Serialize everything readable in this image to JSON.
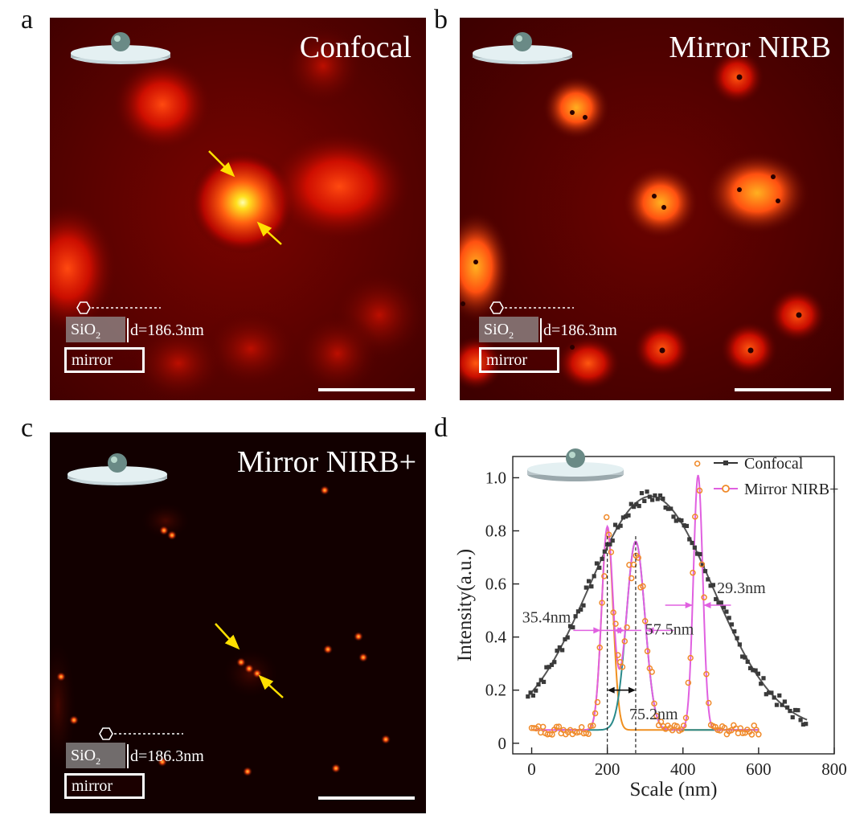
{
  "panels": [
    {
      "letter": "a",
      "title": "Confocal",
      "sio2": "SiO",
      "sio2_sub": "2",
      "thickness": "d=186.3nm",
      "mirror": "mirror"
    },
    {
      "letter": "b",
      "title": "Mirror NIRB",
      "sio2": "SiO",
      "sio2_sub": "2",
      "thickness": "d=186.3nm",
      "mirror": "mirror"
    },
    {
      "letter": "c",
      "title": "Mirror NIRB+",
      "sio2": "SiO",
      "sio2_sub": "2",
      "thickness": "d=186.3nm",
      "mirror": "mirror"
    }
  ],
  "chart_data": {
    "letter": "d",
    "type": "scatter",
    "xlabel": "Scale (nm)",
    "ylabel": "Intensity(a.u.)",
    "xlim": [
      -50,
      800
    ],
    "ylim": [
      -0.04,
      1.08
    ],
    "xticks": [
      "0",
      "200",
      "400",
      "600",
      "800"
    ],
    "yticks": [
      "0",
      "0.2",
      "0.4",
      "0.6",
      "0.8",
      "1.0"
    ],
    "legend": [
      "Confocal",
      "Mirror NIRB+"
    ],
    "legend_position": "top-right",
    "colors": {
      "confocal": "#3a3a3a",
      "nirb": "#f08a2a",
      "fit_pink": "#e060e0",
      "fit_orange": "#f09020",
      "fit_teal": "#2a8a8a"
    },
    "annotations": [
      "35.4nm",
      "57.5nm",
      "29.3nm",
      "75.2nm"
    ],
    "confocal_fit": {
      "amplitude": 0.88,
      "center": 315,
      "sigma": 165,
      "baseline": 0.05
    },
    "nirb_peaks": [
      {
        "center": 200,
        "fwhm": 35.4,
        "amplitude": 0.76
      },
      {
        "center": 275,
        "fwhm": 57.5,
        "amplitude": 0.71
      },
      {
        "center": 440,
        "fwhm": 29.3,
        "amplitude": 0.96
      }
    ],
    "nirb_baseline": 0.05,
    "peak_separation": {
      "from": 200,
      "to": 275,
      "label": "75.2nm"
    }
  }
}
